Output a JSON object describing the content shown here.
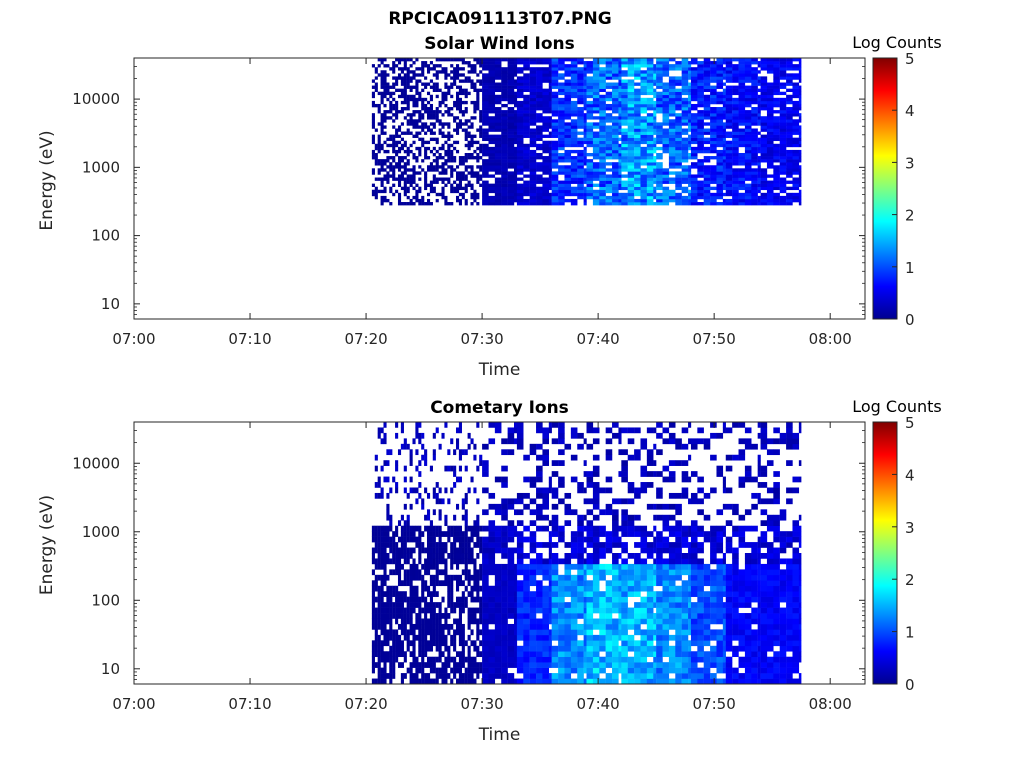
{
  "figure": {
    "title": "RPCICA091113T07.PNG"
  },
  "colormap": {
    "stops": [
      "#00008f",
      "#0000ff",
      "#0080ff",
      "#00ffff",
      "#80ff80",
      "#ffff00",
      "#ff8000",
      "#ff0000",
      "#800000"
    ]
  },
  "chart_data": [
    {
      "type": "heatmap",
      "title": "Solar Wind Ions",
      "xlabel": "Time",
      "ylabel": "Energy (eV)",
      "xticks": [
        "07:00",
        "07:10",
        "07:20",
        "07:30",
        "07:40",
        "07:50",
        "08:00"
      ],
      "xlim_minutes": [
        0,
        63
      ],
      "yscale": "log",
      "yticks": [
        "10",
        "100",
        "1000",
        "10000"
      ],
      "ylim": [
        6,
        40000
      ],
      "colorbar": {
        "label": "Log Counts",
        "ticks": [
          "0",
          "1",
          "2",
          "3",
          "4",
          "5"
        ],
        "range": [
          0,
          5
        ]
      },
      "data_extent": {
        "time_minutes": [
          20.5,
          57.5
        ],
        "energy_eV": [
          280,
          40000
        ]
      },
      "column_mean_log_counts": [
        {
          "t_start": 20.5,
          "t_end": 30.0,
          "value": 0.05
        },
        {
          "t_start": 30.0,
          "t_end": 33.0,
          "value": 0.2
        },
        {
          "t_start": 33.0,
          "t_end": 36.0,
          "value": 0.35
        },
        {
          "t_start": 36.0,
          "t_end": 39.0,
          "value": 0.85
        },
        {
          "t_start": 39.0,
          "t_end": 42.0,
          "value": 1.1
        },
        {
          "t_start": 42.0,
          "t_end": 45.0,
          "value": 1.35
        },
        {
          "t_start": 45.0,
          "t_end": 48.0,
          "value": 1.1
        },
        {
          "t_start": 48.0,
          "t_end": 51.0,
          "value": 0.75
        },
        {
          "t_start": 51.0,
          "t_end": 54.0,
          "value": 0.65
        },
        {
          "t_start": 54.0,
          "t_end": 57.5,
          "value": 0.55
        }
      ]
    },
    {
      "type": "heatmap",
      "title": "Cometary Ions",
      "xlabel": "Time",
      "ylabel": "Energy (eV)",
      "xticks": [
        "07:00",
        "07:10",
        "07:20",
        "07:30",
        "07:40",
        "07:50",
        "08:00"
      ],
      "xlim_minutes": [
        0,
        63
      ],
      "yscale": "log",
      "yticks": [
        "10",
        "100",
        "1000",
        "10000"
      ],
      "ylim": [
        6,
        40000
      ],
      "colorbar": {
        "label": "Log Counts",
        "ticks": [
          "0",
          "1",
          "2",
          "3",
          "4",
          "5"
        ],
        "range": [
          0,
          5
        ]
      },
      "data_extent": {
        "time_minutes": [
          20.5,
          57.5
        ],
        "energy_eV": [
          6,
          40000
        ]
      },
      "column_mean_log_counts": [
        {
          "t_start": 20.5,
          "t_end": 30.0,
          "value": 0.05
        },
        {
          "t_start": 30.0,
          "t_end": 33.0,
          "value": 0.3
        },
        {
          "t_start": 33.0,
          "t_end": 36.0,
          "value": 0.8
        },
        {
          "t_start": 36.0,
          "t_end": 39.0,
          "value": 1.3
        },
        {
          "t_start": 39.0,
          "t_end": 42.0,
          "value": 1.55
        },
        {
          "t_start": 42.0,
          "t_end": 45.0,
          "value": 1.5
        },
        {
          "t_start": 45.0,
          "t_end": 48.0,
          "value": 1.3
        },
        {
          "t_start": 48.0,
          "t_end": 51.0,
          "value": 1.0
        },
        {
          "t_start": 51.0,
          "t_end": 54.0,
          "value": 0.6
        },
        {
          "t_start": 54.0,
          "t_end": 57.5,
          "value": 0.6
        }
      ]
    }
  ]
}
